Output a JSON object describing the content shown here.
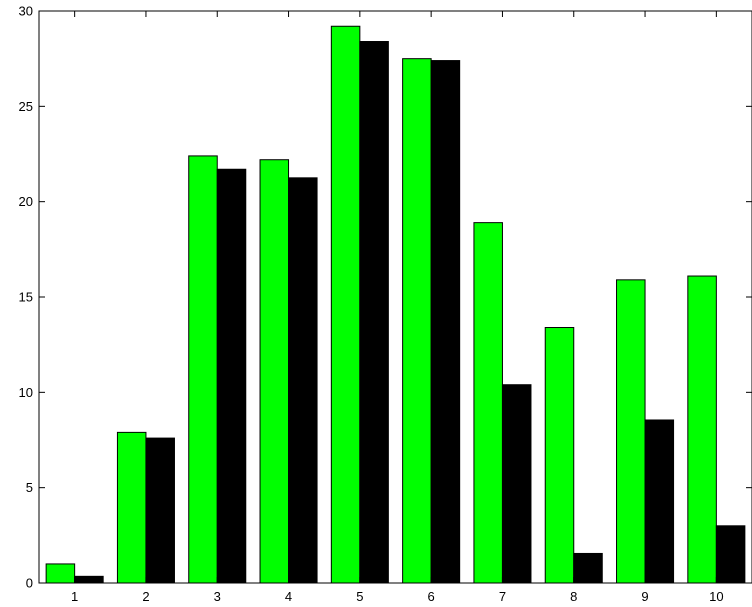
{
  "chart_data": {
    "type": "bar",
    "categories": [
      "1",
      "2",
      "3",
      "4",
      "5",
      "6",
      "7",
      "8",
      "9",
      "10"
    ],
    "series": [
      {
        "color": "#00ff00",
        "values": [
          1.0,
          7.9,
          22.4,
          22.2,
          29.2,
          27.5,
          18.9,
          13.4,
          15.9,
          16.1
        ]
      },
      {
        "color": "#000000",
        "values": [
          0.35,
          7.6,
          21.7,
          21.25,
          28.4,
          27.4,
          10.4,
          1.55,
          8.55,
          3.0
        ]
      }
    ],
    "yticks": [
      "0",
      "5",
      "10",
      "15",
      "20",
      "25",
      "30"
    ],
    "ylim": [
      0,
      30
    ],
    "xlim": [
      0.5,
      10.5
    ],
    "grid": false,
    "title": "",
    "xlabel": "",
    "ylabel": ""
  }
}
